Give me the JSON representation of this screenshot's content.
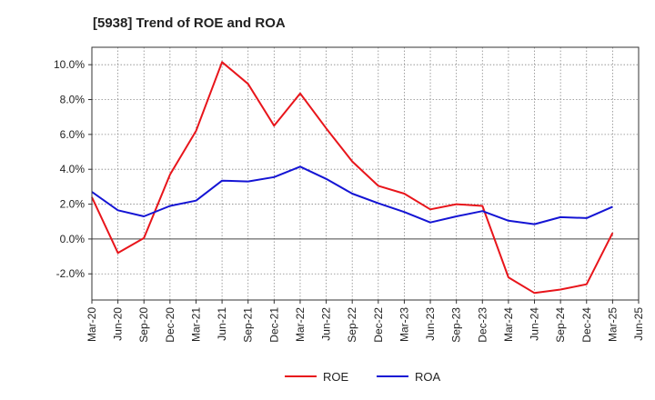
{
  "chart_data": {
    "type": "line",
    "title": "[5938]  Trend of ROE and ROA",
    "xlabel": "",
    "ylabel": "",
    "x_ticks": [
      "Mar-20",
      "Jun-20",
      "Sep-20",
      "Dec-20",
      "Mar-21",
      "Jun-21",
      "Sep-21",
      "Dec-21",
      "Mar-22",
      "Jun-22",
      "Sep-22",
      "Dec-22",
      "Mar-23",
      "Jun-23",
      "Sep-23",
      "Dec-23",
      "Mar-24",
      "Jun-24",
      "Sep-24",
      "Dec-24",
      "Mar-25",
      "Jun-25"
    ],
    "categories": [
      "Mar-20",
      "Jun-20",
      "Sep-20",
      "Dec-20",
      "Mar-21",
      "Jun-21",
      "Sep-21",
      "Dec-21",
      "Mar-22",
      "Jun-22",
      "Sep-22",
      "Dec-22",
      "Mar-23",
      "Jun-23",
      "Sep-23",
      "Dec-23",
      "Mar-24",
      "Jun-24",
      "Sep-24",
      "Dec-24",
      "Mar-25"
    ],
    "y_ticks": [
      "10.0%",
      "8.0%",
      "6.0%",
      "4.0%",
      "2.0%",
      "0.0%",
      "-2.0%"
    ],
    "y_tick_values": [
      10,
      8,
      6,
      4,
      2,
      0,
      -2
    ],
    "ylim": [
      -3.5,
      11.0
    ],
    "grid": true,
    "legend_position": "bottom-center",
    "series": [
      {
        "name": "ROE",
        "color": "#e8151b",
        "values": [
          2.4,
          -0.8,
          0.05,
          3.7,
          6.2,
          10.15,
          8.9,
          6.5,
          8.35,
          6.35,
          4.45,
          3.05,
          2.6,
          1.7,
          2.0,
          1.9,
          -2.2,
          -3.1,
          -2.9,
          -2.6,
          0.35
        ]
      },
      {
        "name": "ROA",
        "color": "#1414d4",
        "values": [
          2.7,
          1.65,
          1.3,
          1.9,
          2.2,
          3.35,
          3.3,
          3.55,
          4.15,
          3.45,
          2.6,
          2.05,
          1.55,
          0.95,
          1.3,
          1.6,
          1.05,
          0.85,
          1.25,
          1.2,
          1.85
        ]
      }
    ]
  }
}
